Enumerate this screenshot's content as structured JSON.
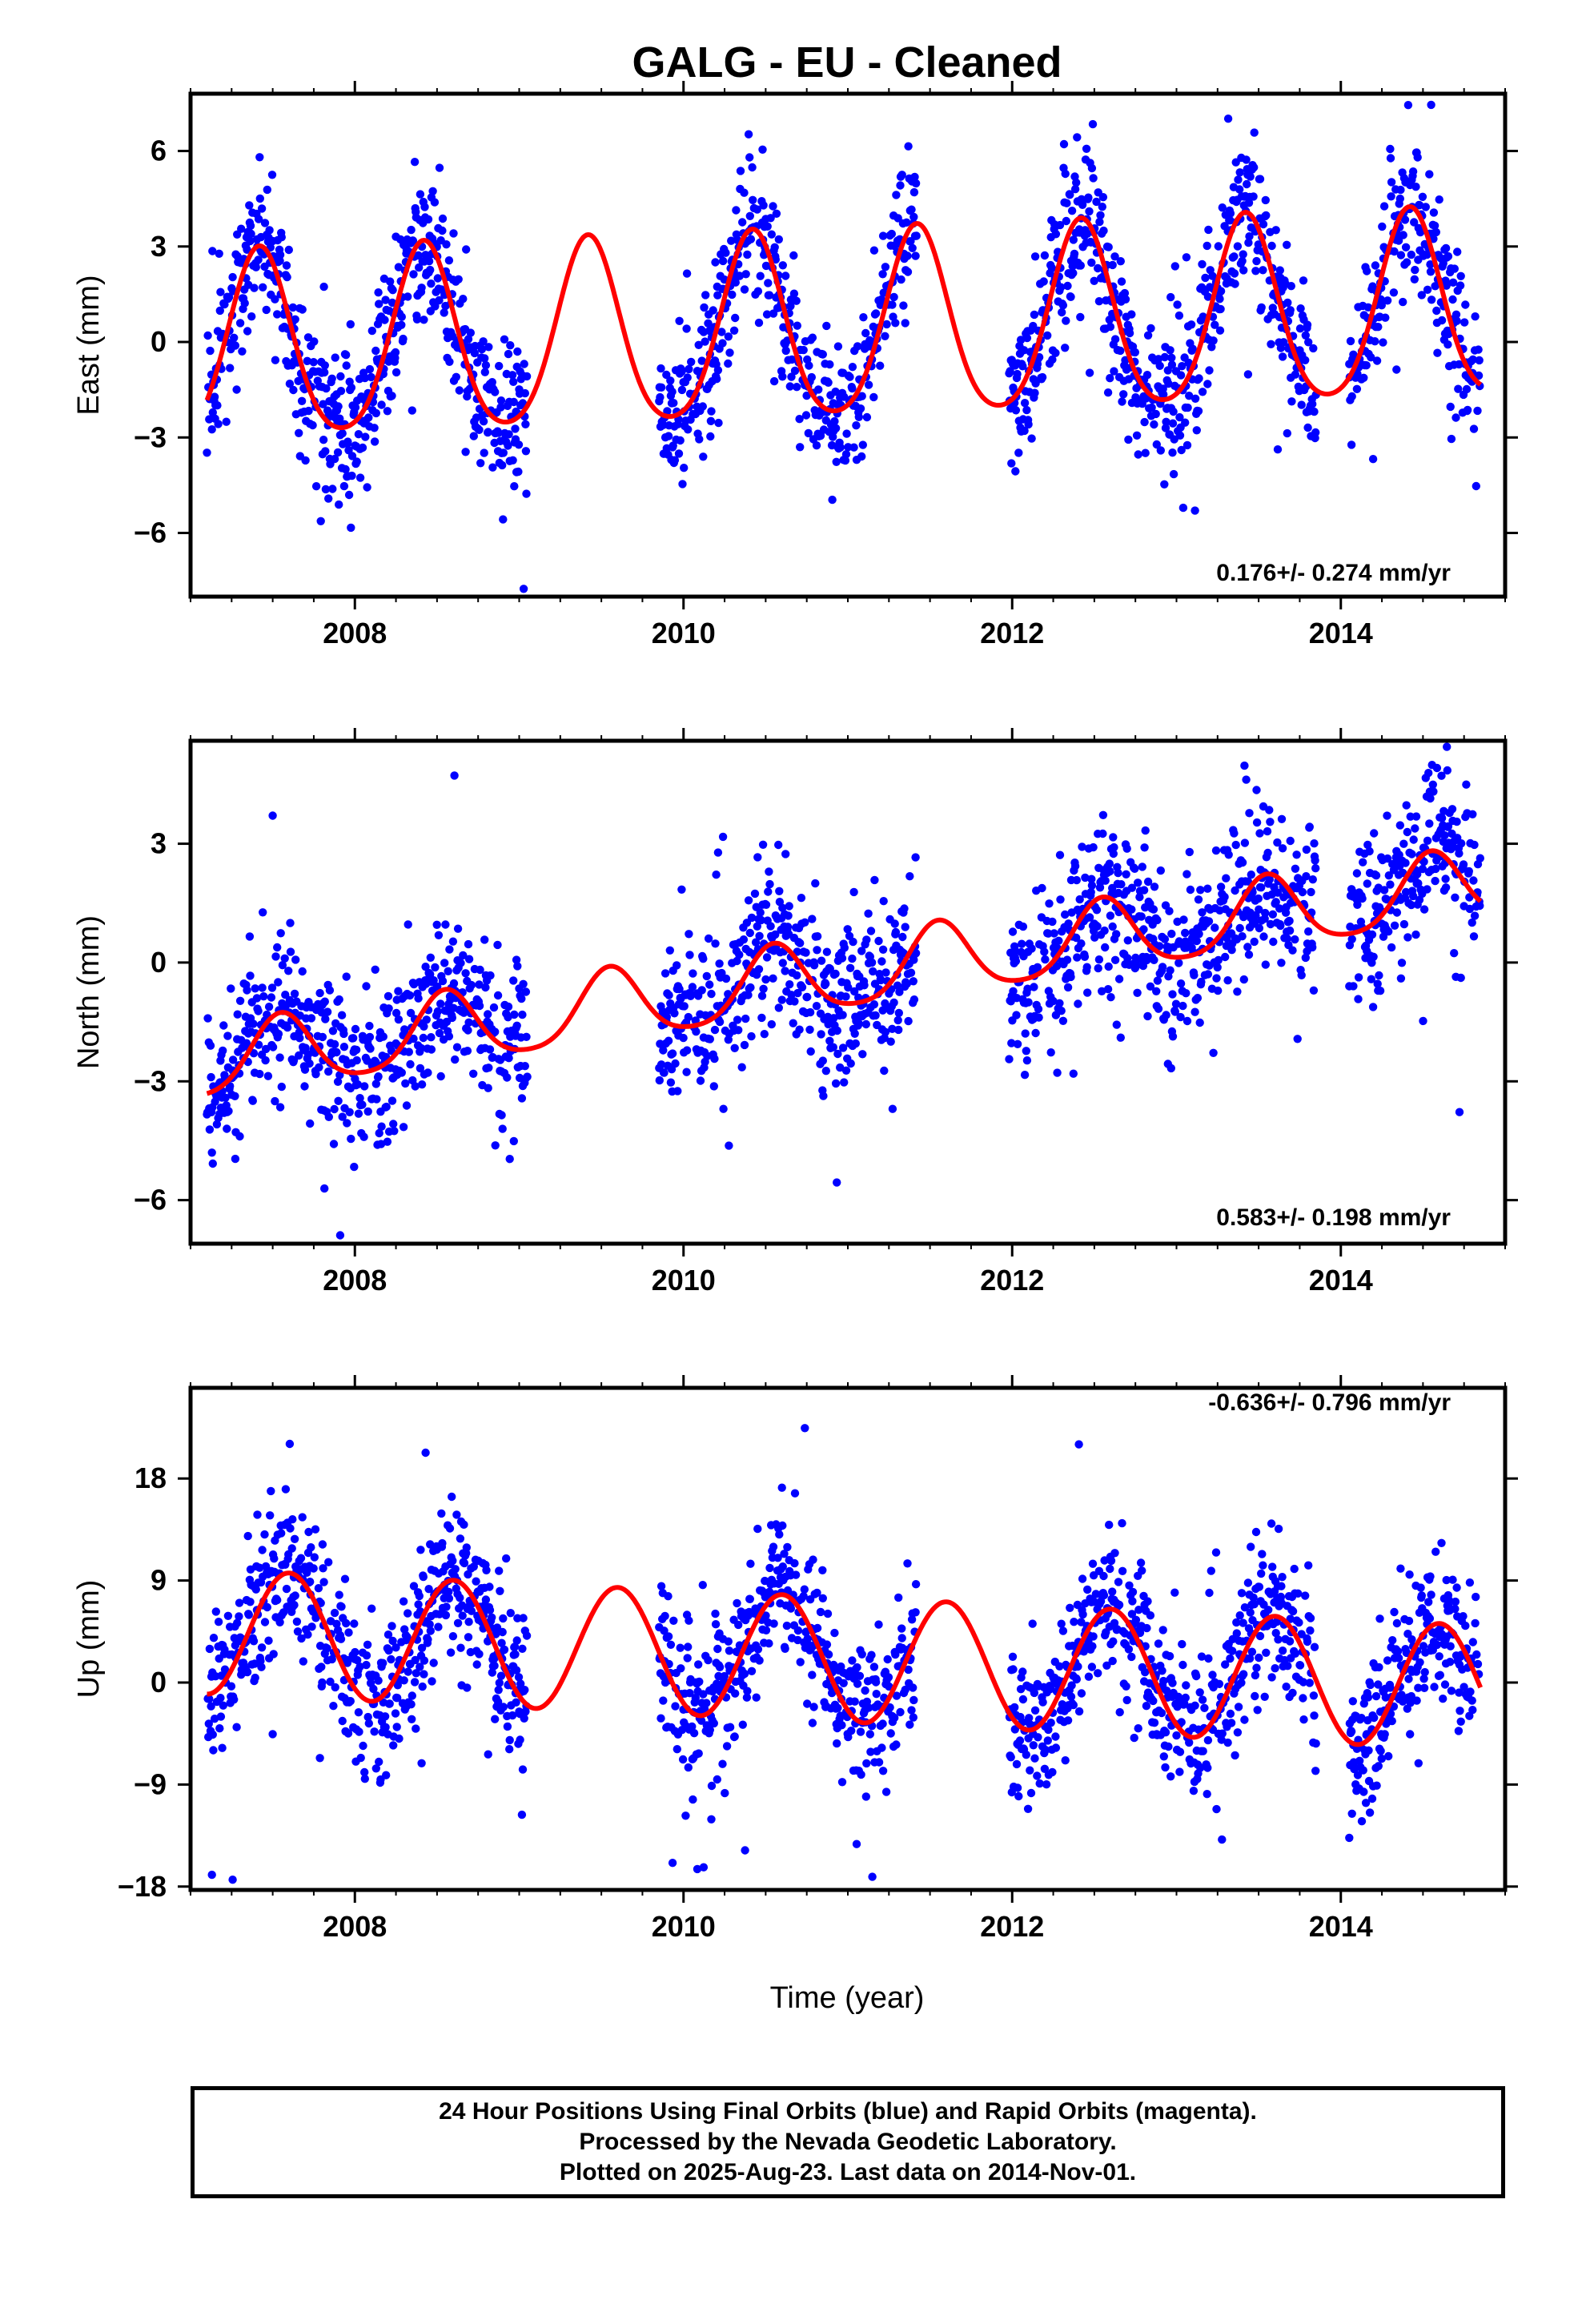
{
  "figure": {
    "title": "GALG  - EU - Cleaned",
    "xlabel": "Time (year)",
    "footer": [
      "24 Hour Positions Using Final Orbits (blue) and Rapid Orbits (magenta).",
      "Processed by the Nevada Geodetic Laboratory.",
      "Plotted on 2025-Aug-23. Last data on 2014-Nov-01."
    ],
    "colors": {
      "points": "#0000ff",
      "model": "#ff0000",
      "axes": "#000000"
    }
  },
  "chart_data": [
    {
      "type": "scatter",
      "ylabel": "East (mm)",
      "rate": "0.176+/- 0.274 mm/yr",
      "xlim": [
        2007.0,
        2015.0
      ],
      "ylim": [
        -8.0,
        7.8
      ],
      "xticks": [
        2008,
        2010,
        2012,
        2014
      ],
      "yticks": [
        -6,
        -3,
        0,
        3,
        6
      ],
      "ytick_labels": [
        "−6",
        "−3",
        "0",
        "3",
        "6"
      ],
      "data_range": [
        2007.1,
        2014.85
      ],
      "gaps": [
        [
          2009.05,
          2009.85
        ],
        [
          2011.42,
          2011.98
        ],
        [
          2013.85,
          2014.05
        ]
      ],
      "model": {
        "offset": 0.35,
        "trend": 0.176,
        "amp_annual": 2.9,
        "peak_year_fraction": 0.42,
        "amp_semiannual": 0.4
      },
      "scatter_sd": 1.1,
      "series": [
        {
          "name": "Final Orbits",
          "color": "#0000ff"
        },
        {
          "name": "Model",
          "color": "#ff0000"
        }
      ]
    },
    {
      "type": "scatter",
      "ylabel": "North (mm)",
      "rate": "0.583+/- 0.198 mm/yr",
      "xlim": [
        2007.0,
        2015.0
      ],
      "ylim": [
        -7.1,
        5.6
      ],
      "xticks": [
        2008,
        2010,
        2012,
        2014
      ],
      "yticks": [
        -6,
        -3,
        0,
        3
      ],
      "ytick_labels": [
        "−6",
        "−3",
        "0",
        "3"
      ],
      "data_range": [
        2007.1,
        2014.85
      ],
      "gaps": [
        [
          2009.05,
          2009.85
        ],
        [
          2011.42,
          2011.98
        ],
        [
          2013.85,
          2014.05
        ]
      ],
      "model": {
        "offset": -0.3,
        "trend": 0.583,
        "amp_annual": 0.9,
        "peak_year_fraction": 0.55,
        "amp_semiannual": 0.15
      },
      "scatter_sd": 1.0,
      "series": [
        {
          "name": "Final Orbits",
          "color": "#0000ff"
        },
        {
          "name": "Model",
          "color": "#ff0000"
        }
      ]
    },
    {
      "type": "scatter",
      "ylabel": "Up (mm)",
      "rate": "-0.636+/- 0.796 mm/yr",
      "xlim": [
        2007.0,
        2015.0
      ],
      "ylim": [
        -18.3,
        26.0
      ],
      "xticks": [
        2008,
        2010,
        2012,
        2014
      ],
      "yticks": [
        -18,
        -9,
        0,
        9,
        18
      ],
      "ytick_labels": [
        "−18",
        "−9",
        "0",
        "9",
        "18"
      ],
      "data_range": [
        2007.1,
        2014.85
      ],
      "gaps": [
        [
          2009.05,
          2009.85
        ],
        [
          2011.42,
          2011.98
        ],
        [
          2013.85,
          2014.05
        ]
      ],
      "model": {
        "offset": 2.0,
        "trend": -0.636,
        "amp_annual": 5.5,
        "peak_year_fraction": 0.6,
        "amp_semiannual": 0.0
      },
      "scatter_sd": 3.3,
      "series": [
        {
          "name": "Final Orbits",
          "color": "#0000ff"
        },
        {
          "name": "Model",
          "color": "#ff0000"
        }
      ]
    }
  ]
}
